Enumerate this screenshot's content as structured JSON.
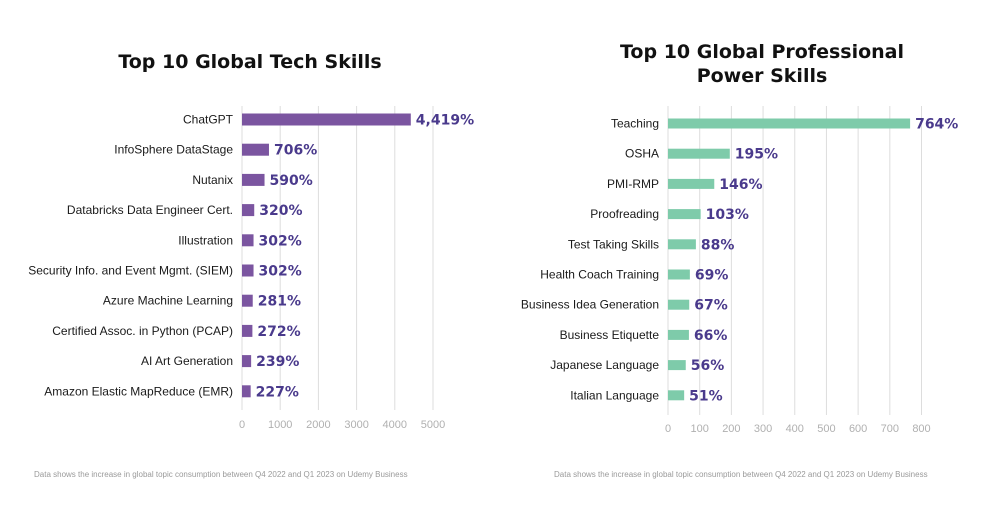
{
  "chart_data": [
    {
      "type": "bar",
      "orientation": "horizontal",
      "title": "Top 10 Global Tech Skills",
      "categories": [
        "ChatGPT",
        "InfoSphere DataStage",
        "Nutanix",
        "Databricks Data Engineer Cert.",
        "Illustration",
        "Security Info. and Event Mgmt. (SIEM)",
        "Azure Machine Learning",
        "Certified Assoc. in Python (PCAP)",
        "AI Art Generation",
        "Amazon Elastic MapReduce (EMR)"
      ],
      "values": [
        4419,
        706,
        590,
        320,
        302,
        302,
        281,
        272,
        239,
        227
      ],
      "value_labels": [
        "4,419%",
        "706%",
        "590%",
        "320%",
        "302%",
        "302%",
        "281%",
        "272%",
        "239%",
        "227%"
      ],
      "xticks": [
        "0",
        "1000",
        "2000",
        "3000",
        "4000",
        "5000"
      ],
      "xlim": [
        0,
        5000
      ],
      "grid": true,
      "bar_color": "#7b55a0",
      "footnote": "Data shows the increase in global topic consumption between Q4 2022 and Q1 2023 on Udemy Business"
    },
    {
      "type": "bar",
      "orientation": "horizontal",
      "title": "Top 10 Global Professional Power Skills",
      "categories": [
        "Teaching",
        "OSHA",
        "PMI-RMP",
        "Proofreading",
        "Test Taking Skills",
        "Health Coach Training",
        "Business Idea Generation",
        "Business Etiquette",
        "Japanese Language",
        "Italian Language"
      ],
      "values": [
        764,
        195,
        146,
        103,
        88,
        69,
        67,
        66,
        56,
        51
      ],
      "value_labels": [
        "764%",
        "195%",
        "146%",
        "103%",
        "88%",
        "69%",
        "67%",
        "66%",
        "56%",
        "51%"
      ],
      "xticks": [
        "0",
        "100",
        "200",
        "300",
        "400",
        "500",
        "600",
        "700",
        "800"
      ],
      "xlim": [
        0,
        800
      ],
      "grid": true,
      "bar_color": "#7ecbaa",
      "footnote": "Data shows the increase in global topic consumption between Q4 2022 and Q1 2023 on Udemy Business"
    }
  ]
}
